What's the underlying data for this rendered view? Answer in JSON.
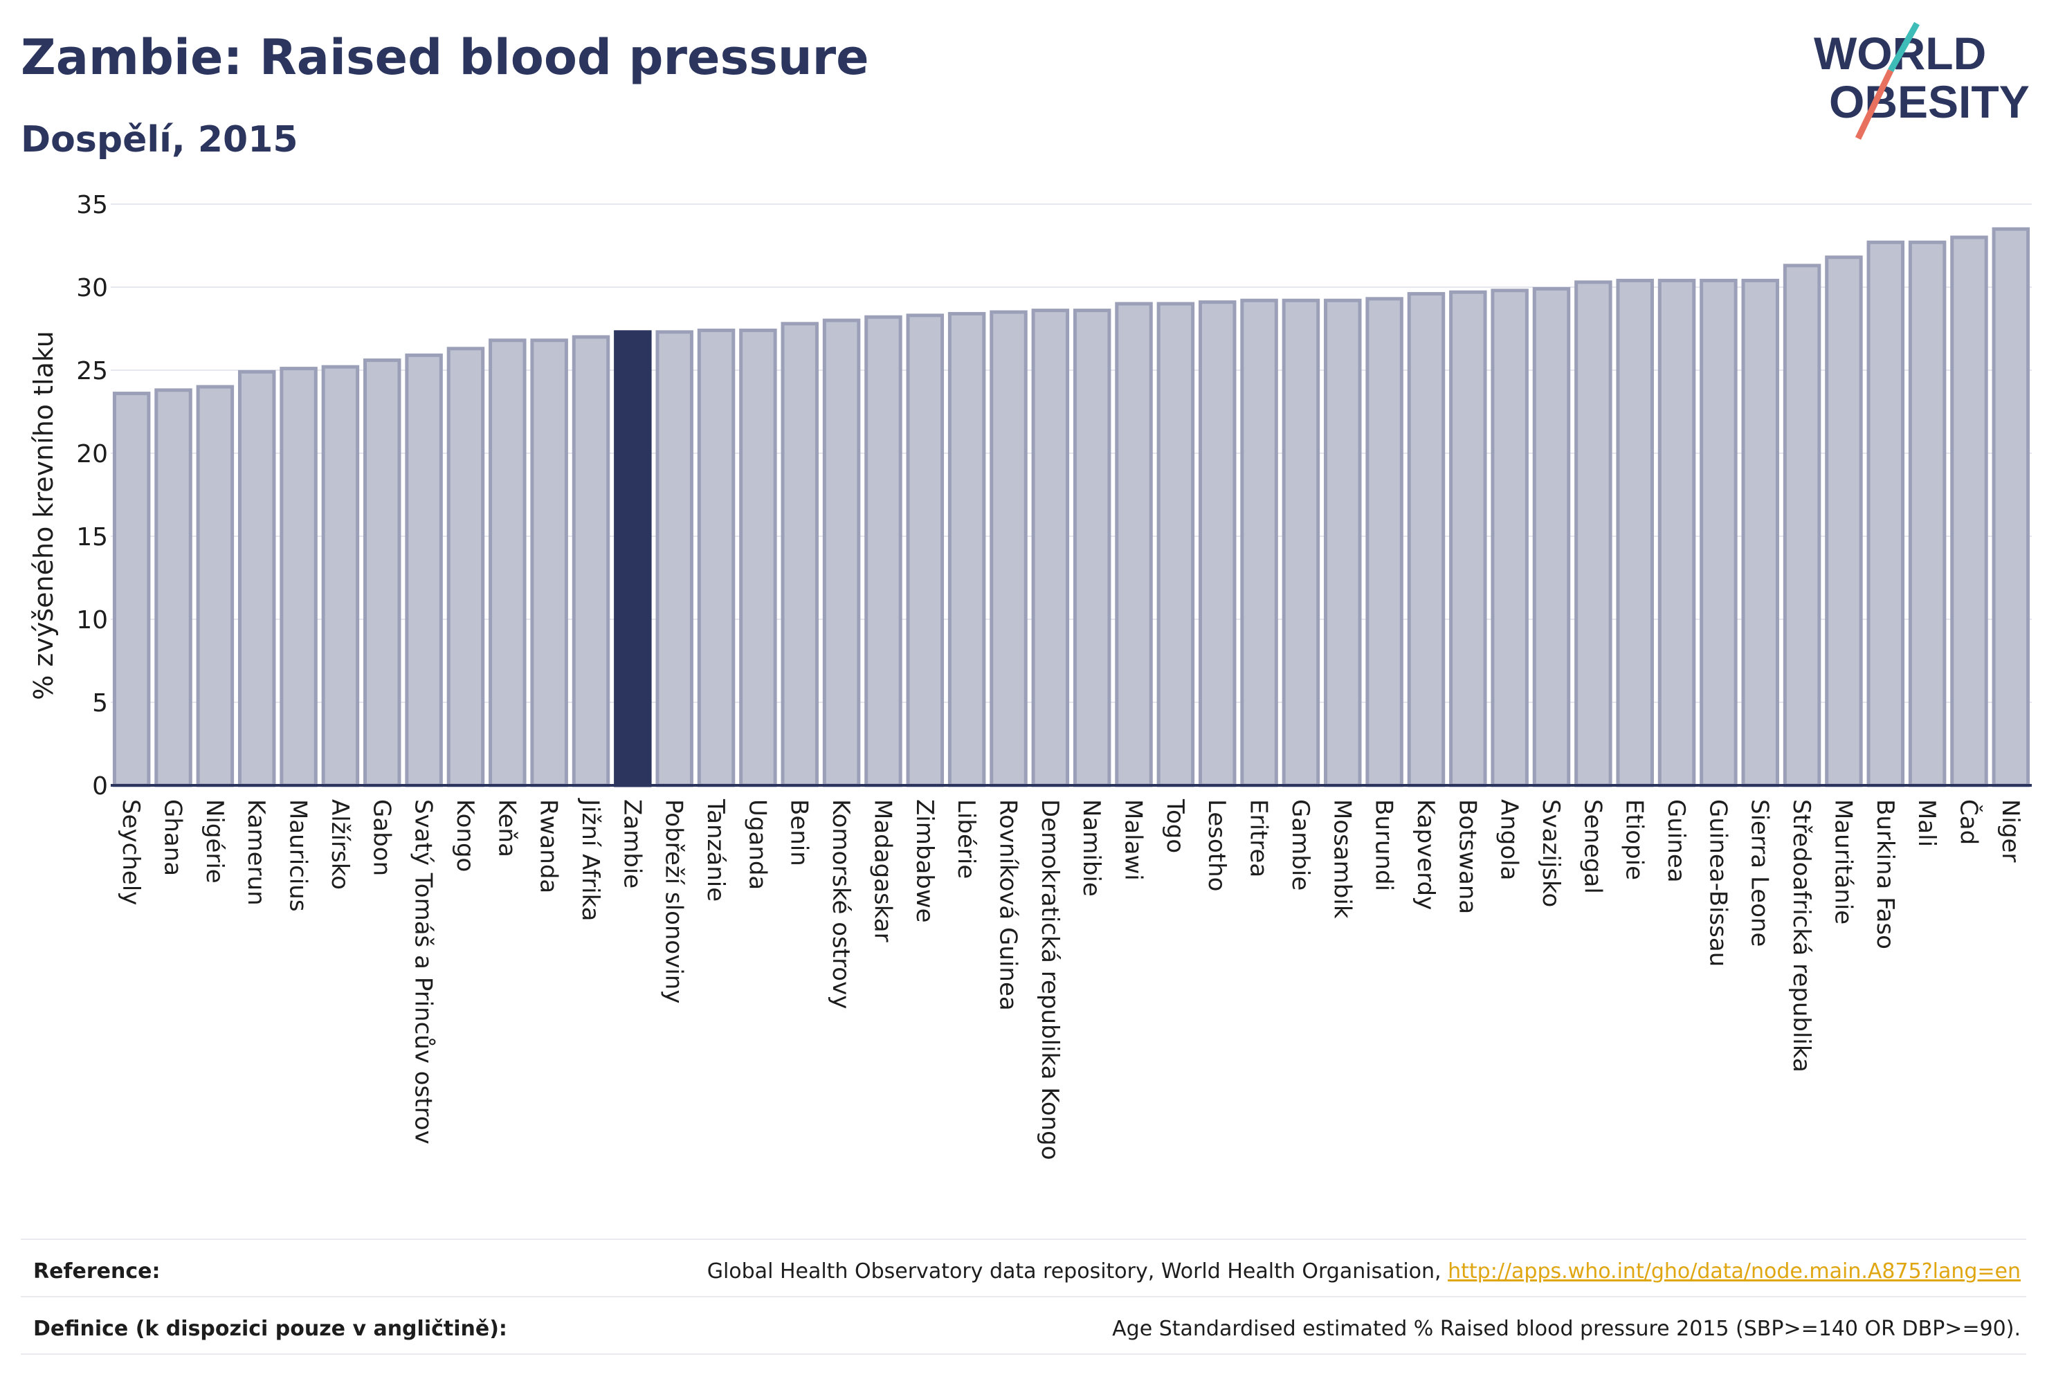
{
  "header": {
    "title": "Zambie: Raised blood pressure",
    "subtitle": "Dospělí, 2015"
  },
  "logo": {
    "line1": "WORLD",
    "line2": "OBESITY"
  },
  "chart_data": {
    "type": "bar",
    "title": "Zambie: Raised blood pressure",
    "subtitle": "Dospělí, 2015",
    "ylabel": "% zvýšeného krevního tlaku",
    "xlabel": "",
    "ylim": [
      0,
      35
    ],
    "yticks": [
      0,
      5,
      10,
      15,
      20,
      25,
      30,
      35
    ],
    "grid": true,
    "highlight": "Zambie",
    "colors": {
      "bar": "#bfc2d1",
      "bar_border": "#9ba0b8",
      "highlight": "#2b355e",
      "axis": "#2b355e",
      "grid": "#e6e7ec"
    },
    "categories": [
      "Seychely",
      "Ghana",
      "Nigérie",
      "Kamerun",
      "Mauricius",
      "Alžírsko",
      "Gabon",
      "Svatý Tomáš a Princův ostrov",
      "Kongo",
      "Keňa",
      "Rwanda",
      "Jižní Afrika",
      "Zambie",
      "Pobřeží slonoviny",
      "Tanzánie",
      "Uganda",
      "Benin",
      "Komorské ostrovy",
      "Madagaskar",
      "Zimbabwe",
      "Libérie",
      "Rovníková Guinea",
      "Demokratická republika Kongo",
      "Namibie",
      "Malawi",
      "Togo",
      "Lesotho",
      "Eritrea",
      "Gambie",
      "Mosambik",
      "Burundi",
      "Kapverdy",
      "Botswana",
      "Angola",
      "Svazijsko",
      "Senegal",
      "Etiopie",
      "Guinea",
      "Guinea-Bissau",
      "Sierra Leone",
      "Středoafrická republika",
      "Mauritánie",
      "Burkina Faso",
      "Mali",
      "Čad",
      "Niger"
    ],
    "values": [
      23.6,
      23.8,
      24.0,
      24.9,
      25.1,
      25.2,
      25.6,
      25.9,
      26.3,
      26.8,
      26.8,
      27.0,
      27.3,
      27.3,
      27.4,
      27.4,
      27.8,
      28.0,
      28.2,
      28.3,
      28.4,
      28.5,
      28.6,
      28.6,
      29.0,
      29.0,
      29.1,
      29.2,
      29.2,
      29.2,
      29.3,
      29.6,
      29.7,
      29.8,
      29.9,
      30.3,
      30.4,
      30.4,
      30.4,
      30.4,
      31.3,
      31.8,
      32.7,
      32.7,
      33.0,
      33.5
    ]
  },
  "footer": {
    "reference_label": "Reference:",
    "reference_text": "Global Health Observatory data repository, World Health Organisation,",
    "reference_link": "http://apps.who.int/gho/data/node.main.A875?lang=en",
    "definition_label": "Definice (k dispozici pouze v angličtině):",
    "definition_text": "Age Standardised estimated % Raised blood pressure 2015 (SBP>=140 OR DBP>=90)."
  }
}
